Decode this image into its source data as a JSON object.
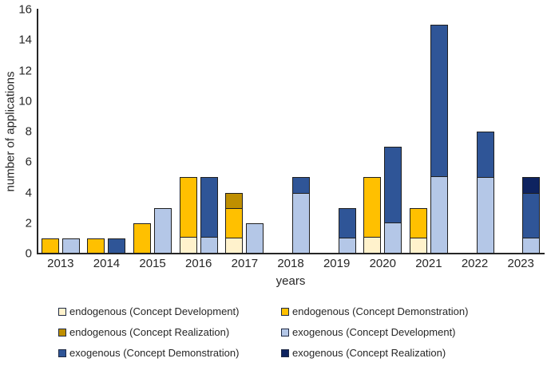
{
  "chart_data": {
    "type": "bar",
    "stacked": true,
    "title": "",
    "xlabel": "years",
    "ylabel": "number of applications",
    "ylim": [
      0,
      16
    ],
    "ytick_step": 2,
    "grid": false,
    "legend_position": "bottom",
    "categories": [
      "2013",
      "2014",
      "2015",
      "2016",
      "2017",
      "2018",
      "2019",
      "2020",
      "2021",
      "2022",
      "2023"
    ],
    "stacks": [
      "endogenous",
      "exogenous"
    ],
    "series": [
      {
        "name": "endogenous (Concept Development)",
        "stack": "endogenous",
        "color": "#FFF2CC",
        "values": [
          0,
          0,
          0,
          1,
          1,
          0,
          0,
          1,
          1,
          0,
          0
        ]
      },
      {
        "name": "endogenous (Concept Demonstration)",
        "stack": "endogenous",
        "color": "#FFC000",
        "values": [
          1,
          1,
          2,
          4,
          2,
          0,
          0,
          4,
          2,
          0,
          0
        ]
      },
      {
        "name": "endogenous (Concept Realization)",
        "stack": "endogenous",
        "color": "#BF8F00",
        "values": [
          0,
          0,
          0,
          0,
          1,
          0,
          0,
          0,
          0,
          0,
          0
        ]
      },
      {
        "name": "exogenous (Concept Development)",
        "stack": "exogenous",
        "color": "#B4C7E7",
        "values": [
          1,
          0,
          3,
          1,
          2,
          4,
          1,
          2,
          5,
          5,
          1
        ]
      },
      {
        "name": "exogenous (Concept Demonstration)",
        "stack": "exogenous",
        "color": "#2F5597",
        "values": [
          0,
          1,
          0,
          4,
          0,
          1,
          2,
          5,
          10,
          3,
          3
        ]
      },
      {
        "name": "exogenous (Concept Realization)",
        "stack": "exogenous",
        "color": "#0E2360",
        "values": [
          0,
          0,
          0,
          0,
          0,
          0,
          0,
          0,
          0,
          0,
          1
        ]
      }
    ]
  }
}
